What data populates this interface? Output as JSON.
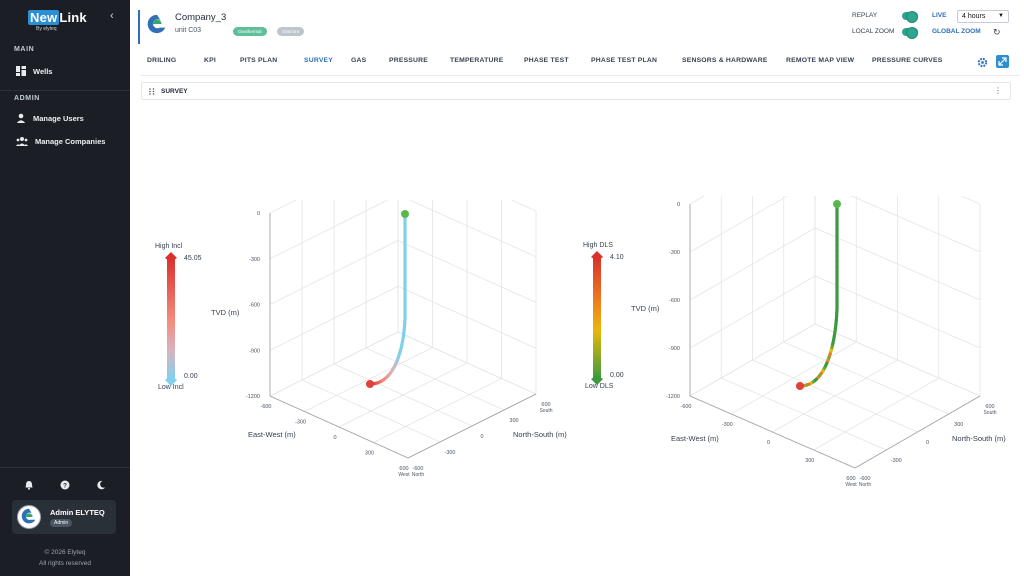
{
  "sidebar": {
    "logo_new": "New",
    "logo_link": "Link",
    "logo_sub": "By elyteq",
    "main_label": "MAIN",
    "admin_label": "ADMIN",
    "items": [
      {
        "label": "Wells",
        "icon": "dashboard-icon"
      },
      {
        "label": "Manage Users",
        "icon": "user-icon"
      },
      {
        "label": "Manage Companies",
        "icon": "users-group-icon"
      }
    ],
    "footer_icons": [
      "bell-icon",
      "help-icon",
      "moon-icon"
    ],
    "user": {
      "name": "Admin ELYTEQ",
      "role": "Admin"
    },
    "copyright": "© 2026 Elyteq",
    "rights": "All rights reserved"
  },
  "header": {
    "company": "Company_3",
    "unit": "unit C03",
    "badges": [
      "Geothermal",
      "Onshore"
    ],
    "replay_label": "REPLAY",
    "live_label": "LIVE",
    "local_zoom_label": "LOCAL ZOOM",
    "global_zoom_label": "GLOBAL ZOOM",
    "range": "4 hours"
  },
  "tabs": [
    "DRILING",
    "KPI",
    "PITS PLAN",
    "SURVEY",
    "GAS",
    "PRESSURE",
    "TEMPERATURE",
    "PHASE TEST",
    "PHASE TEST PLAN",
    "SENSORS & HARDWARE",
    "REMOTE MAP VIEW",
    "PRESSURE CURVES"
  ],
  "active_tab": "SURVEY",
  "panel": {
    "title": "SURVEY"
  },
  "colors": {
    "accent": "#2e6fb7",
    "sidebar_bg": "#1b1f25",
    "toggle": "#2fa58f"
  },
  "charts": {
    "incl": {
      "legend_high": "High Incl",
      "legend_low": "Low Incl",
      "max": "45.05",
      "min": "0.00",
      "tvd_label": "TVD (m)",
      "ew_label": "East-West (m)",
      "ns_label": "North-South (m)",
      "z_ticks": [
        "0",
        "-300",
        "-600",
        "-900",
        "-1200"
      ],
      "ew_ticks": [
        "-600",
        "-300",
        "0",
        "300",
        "600"
      ],
      "ew_end": "West",
      "ns_ticks": [
        "-600",
        "-300",
        "0",
        "300",
        "600"
      ],
      "ns_start": "North",
      "ns_end": "South"
    },
    "dls": {
      "legend_high": "High DLS",
      "legend_low": "Low DLS",
      "max": "4.10",
      "min": "0.00",
      "tvd_label": "TVD (m)",
      "ew_label": "East-West (m)",
      "ns_label": "North-South (m)",
      "z_ticks": [
        "0",
        "-300",
        "-600",
        "-900",
        "-1200"
      ],
      "ew_ticks": [
        "-600",
        "-300",
        "0",
        "300",
        "600"
      ],
      "ew_end": "West",
      "ns_ticks": [
        "-600",
        "-300",
        "0",
        "300",
        "600"
      ],
      "ns_start": "North",
      "ns_end": "South"
    }
  }
}
